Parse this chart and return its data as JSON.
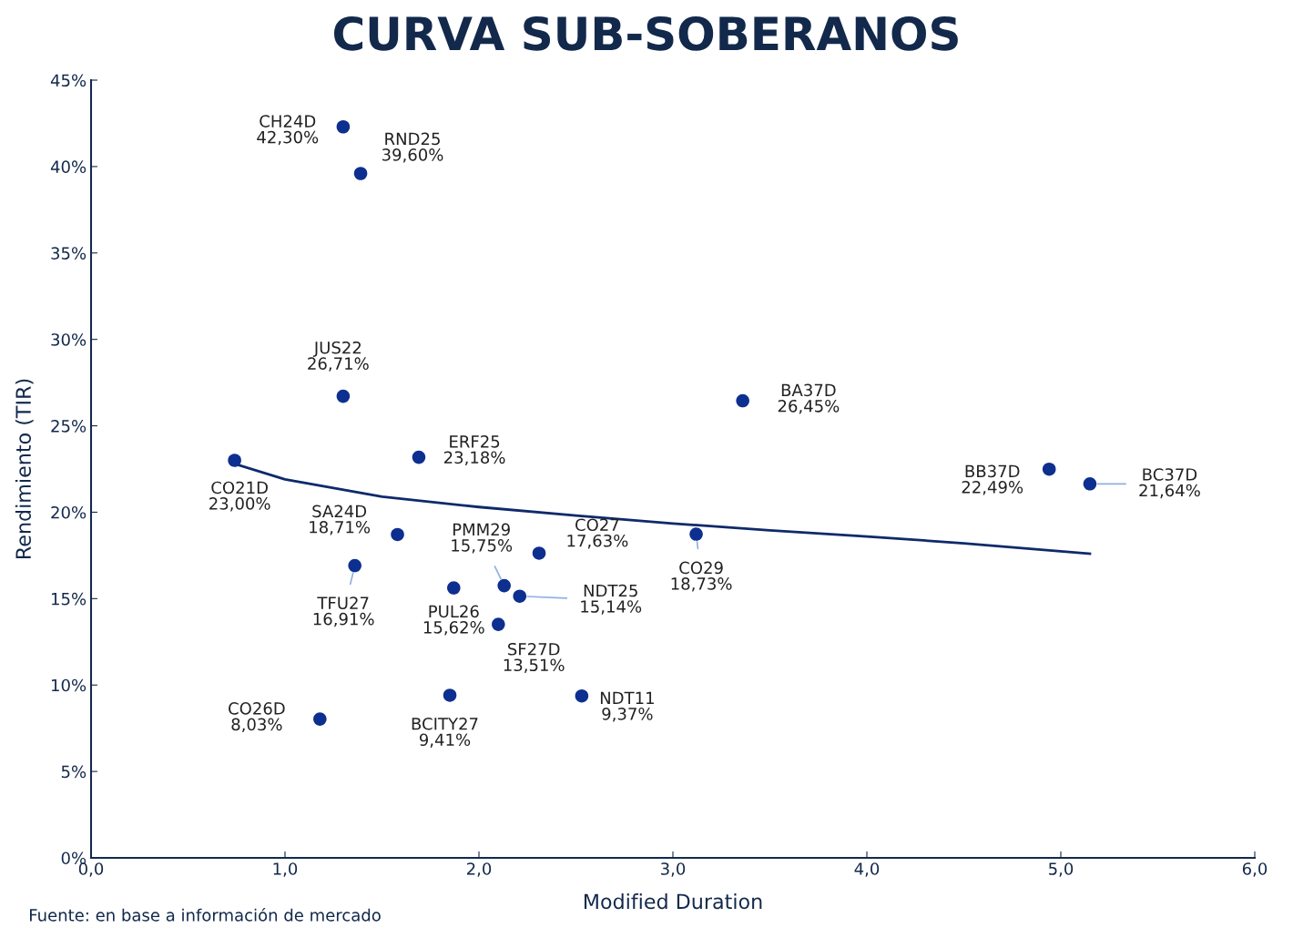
{
  "chart_data": {
    "type": "scatter",
    "title": "CURVA SUB-SOBERANOS",
    "xlabel": "Modified Duration",
    "ylabel": "Rendimiento (TIR)",
    "annotations": [
      "Fuente: en base a información de mercado"
    ],
    "xlim": [
      0,
      6
    ],
    "xticks": [
      {
        "value": 0,
        "label": "0,0"
      },
      {
        "value": 1,
        "label": "1,0"
      },
      {
        "value": 2,
        "label": "2,0"
      },
      {
        "value": 3,
        "label": "3,0"
      },
      {
        "value": 4,
        "label": "4,0"
      },
      {
        "value": 5,
        "label": "5,0"
      },
      {
        "value": 6,
        "label": "6,0"
      }
    ],
    "ylim": [
      0,
      45
    ],
    "yticks": [
      {
        "value": 0,
        "label": "0%"
      },
      {
        "value": 5,
        "label": "5%"
      },
      {
        "value": 10,
        "label": "10%"
      },
      {
        "value": 15,
        "label": "15%"
      },
      {
        "value": 20,
        "label": "20%"
      },
      {
        "value": 25,
        "label": "25%"
      },
      {
        "value": 30,
        "label": "30%"
      },
      {
        "value": 35,
        "label": "35%"
      },
      {
        "value": 40,
        "label": "40%"
      },
      {
        "value": 45,
        "label": "45%"
      }
    ],
    "grid": false,
    "legend": false,
    "series": [
      {
        "marker": "circle",
        "color": "#0d2f8f",
        "x": [
          1.3,
          1.39,
          1.3,
          0.74,
          1.69,
          1.58,
          1.36,
          1.87,
          2.13,
          2.21,
          2.1,
          2.31,
          1.85,
          2.53,
          1.18,
          3.12,
          3.36,
          4.94,
          5.15
        ],
        "values": [
          42.3,
          39.6,
          26.71,
          23.0,
          23.18,
          18.71,
          16.91,
          15.62,
          15.75,
          15.14,
          13.51,
          17.63,
          9.41,
          9.37,
          8.03,
          18.73,
          26.45,
          22.49,
          21.64
        ],
        "value_labels": [
          "CH24D\n42,30%",
          "RND25\n39,60%",
          "JUS22\n26,71%",
          "CO21D\n23,00%",
          "ERF25\n23,18%",
          "SA24D\n18,71%",
          "TFU27\n16,91%",
          "PUL26\n15,62%",
          "PMM29\n15,75%",
          "NDT25\n15,14%",
          "SF27D\n13,51%",
          "CO27\n17,63%",
          "BCITY27\n9,41%",
          "NDT11\n9,37%",
          "CO26D\n8,03%",
          "CO29\n18,73%",
          "BA37D\n26,45%",
          "BB37D\n22,49%",
          "BC37D\n21,64%"
        ]
      },
      {
        "type": "line",
        "color": "#0d2a6b",
        "line_style": "solid",
        "marker": "none",
        "x": [
          0.74,
          1.0,
          1.5,
          2.0,
          2.5,
          3.0,
          3.5,
          4.0,
          4.5,
          5.15
        ],
        "values": [
          22.8,
          21.9,
          20.9,
          20.3,
          19.8,
          19.35,
          18.95,
          18.6,
          18.2,
          17.6
        ]
      }
    ]
  }
}
